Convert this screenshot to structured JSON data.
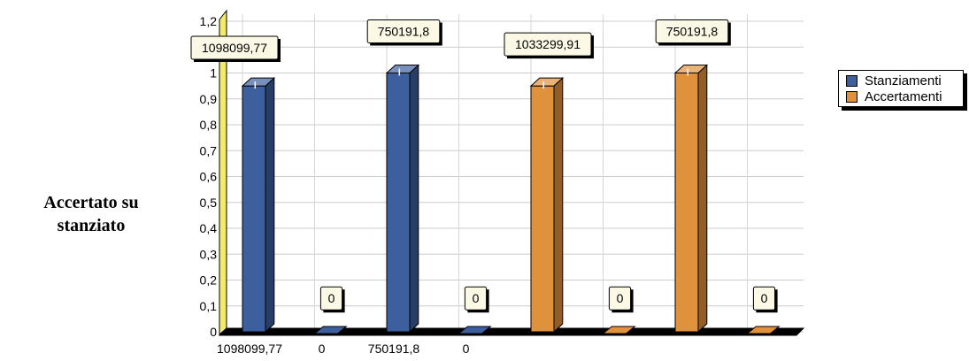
{
  "side_title": "Accertato su stanziato",
  "chart_data": {
    "type": "bar",
    "categories": [
      "1098099,77",
      "0",
      "750191,8",
      "0",
      "",
      "",
      "",
      ""
    ],
    "ylim": [
      0,
      1.2
    ],
    "yticks": [
      "0",
      "0,1",
      "0,2",
      "0,3",
      "0,4",
      "0,5",
      "0,6",
      "0,7",
      "0,8",
      "0,9",
      "1",
      "1,1",
      "1,2"
    ],
    "yticks_printed": [
      "0",
      "0,1",
      "0,2",
      "0,3",
      "0,4",
      "0,5",
      "0,6",
      "0,7",
      "0,8",
      "0,9",
      "1",
      "",
      "1,2"
    ],
    "grid": true,
    "legend_position": "top-right",
    "series": [
      {
        "name": "Stanziamenti",
        "color": "#3D5F9E"
      },
      {
        "name": "Accertamenti",
        "color": "#E0913B"
      }
    ],
    "bars": [
      {
        "series": 0,
        "value": 0.95,
        "label": "1098099,77"
      },
      {
        "series": 0,
        "value": 0,
        "label": "0"
      },
      {
        "series": 0,
        "value": 1.0,
        "label": "750191,8"
      },
      {
        "series": 0,
        "value": 0,
        "label": "0"
      },
      {
        "series": 1,
        "value": 0.95,
        "label": "1033299,91"
      },
      {
        "series": 1,
        "value": 0,
        "label": "0"
      },
      {
        "series": 1,
        "value": 1.0,
        "label": "750191,8"
      },
      {
        "series": 1,
        "value": 0,
        "label": "0"
      }
    ]
  }
}
